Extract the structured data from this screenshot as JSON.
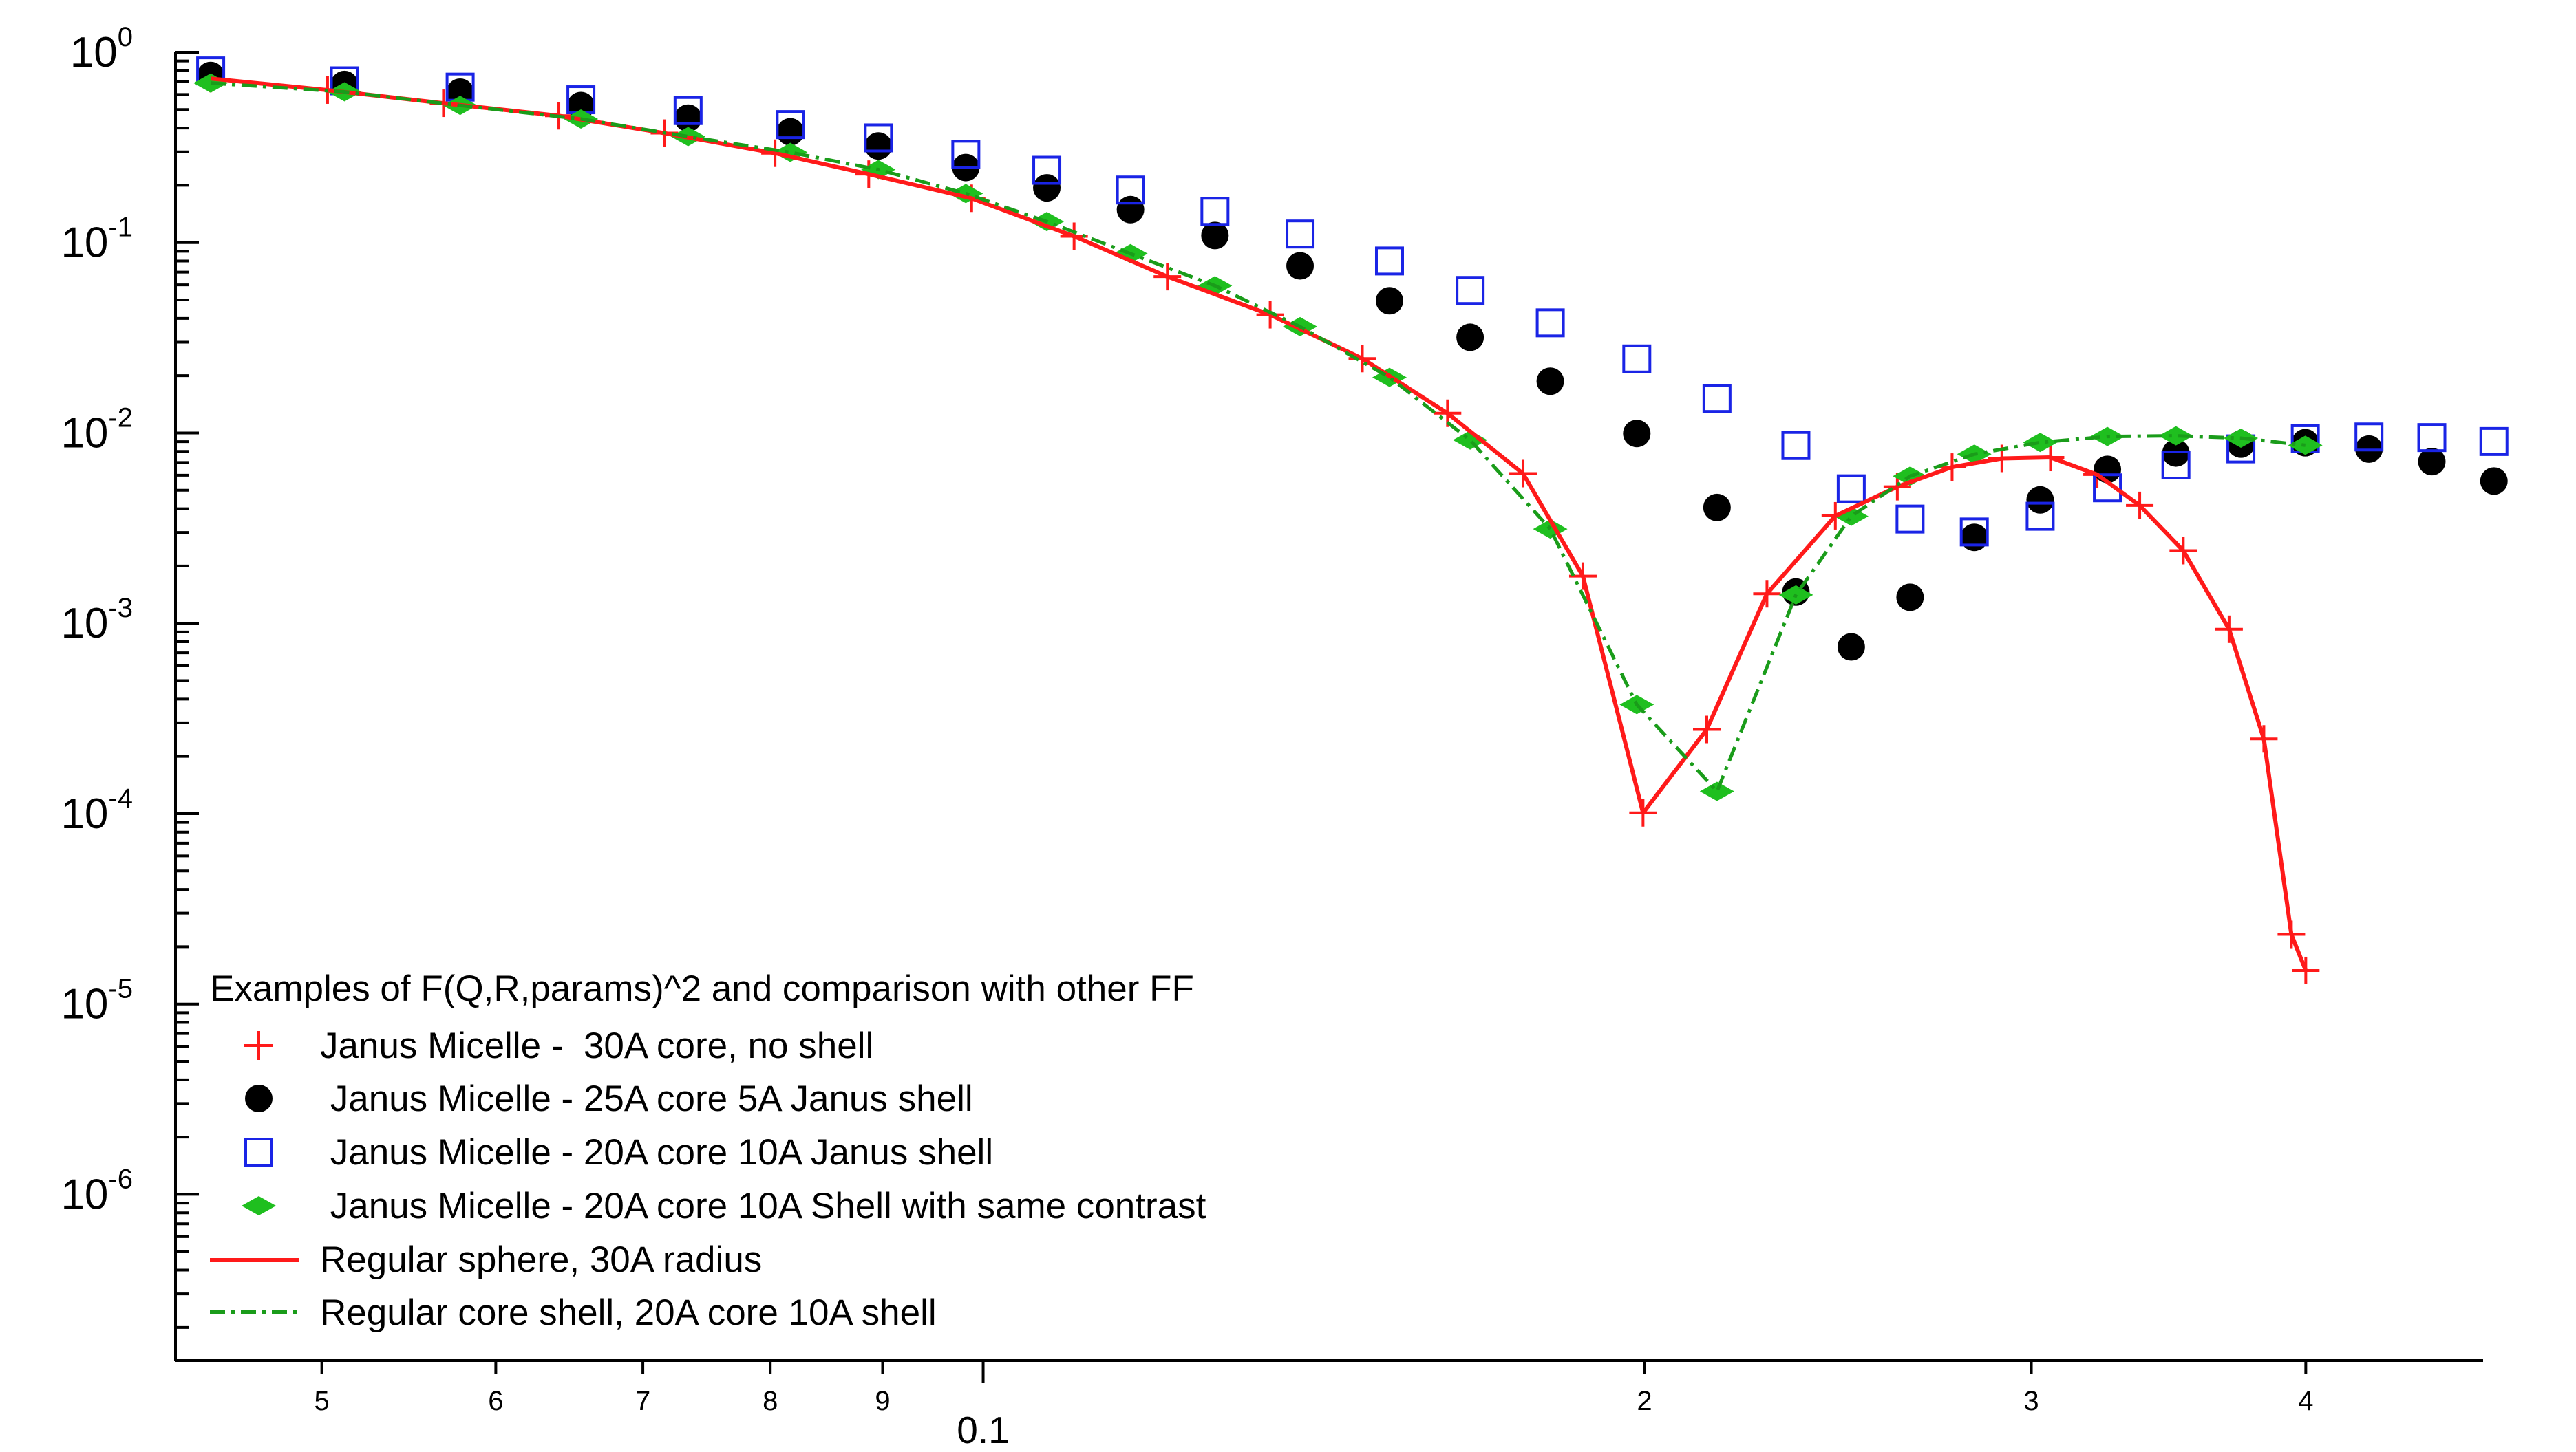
{
  "chart_data": {
    "type": "scatter",
    "x_scale": "log",
    "y_scale": "log",
    "xlim": [
      0.04289,
      0.4817
    ],
    "ylim": [
      1.34e-07,
      1.0
    ],
    "grid": false,
    "legend_position": "bottom-left",
    "x_ticks": [
      {
        "value": 0.05,
        "label": "5"
      },
      {
        "value": 0.06,
        "label": "6"
      },
      {
        "value": 0.07,
        "label": "7"
      },
      {
        "value": 0.08,
        "label": "8"
      },
      {
        "value": 0.09,
        "label": "9"
      },
      {
        "value": 0.2,
        "label": "2"
      },
      {
        "value": 0.3,
        "label": "3"
      },
      {
        "value": 0.4,
        "label": "4"
      }
    ],
    "x_major_label": {
      "value": 0.1,
      "label": "0.1"
    },
    "y_ticks": [
      {
        "value": 1,
        "base": "10",
        "exp": "0"
      },
      {
        "value": 0.1,
        "base": "10",
        "exp": "-1"
      },
      {
        "value": 0.01,
        "base": "10",
        "exp": "-2"
      },
      {
        "value": 0.001,
        "base": "10",
        "exp": "-3"
      },
      {
        "value": 0.0001,
        "base": "10",
        "exp": "-4"
      },
      {
        "value": 1e-05,
        "base": "10",
        "exp": "-5"
      },
      {
        "value": 1e-06,
        "base": "10",
        "exp": "-6"
      }
    ],
    "legend_title": "Examples of F(Q,R,params)^2 and comparison with other FF",
    "series": [
      {
        "name": "Janus Micelle -  30A core, no shell",
        "kind": "plus",
        "color": "#ff1a1a",
        "points": [
          [
            0.0445,
            0.728
          ],
          [
            0.0503,
            0.633
          ],
          [
            0.0568,
            0.54
          ],
          [
            0.0641,
            0.464
          ],
          [
            0.0716,
            0.376
          ],
          [
            0.0804,
            0.295
          ],
          [
            0.0887,
            0.229
          ],
          [
            0.0988,
            0.171
          ],
          [
            0.11,
            0.108
          ],
          [
            0.1213,
            0.0663
          ],
          [
            0.1351,
            0.0418
          ],
          [
            0.1488,
            0.0246
          ],
          [
            0.1627,
            0.0127
          ],
          [
            0.1761,
            0.00612
          ],
          [
            0.1875,
            0.00177
          ],
          [
            0.1997,
            0.000101
          ],
          [
            0.2135,
            0.000277
          ],
          [
            0.2274,
            0.00143
          ],
          [
            0.2443,
            0.00367
          ],
          [
            0.2607,
            0.00522
          ],
          [
            0.2761,
            0.00662
          ],
          [
            0.2909,
            0.00735
          ],
          [
            0.3061,
            0.00744
          ],
          [
            0.3214,
            0.00605
          ],
          [
            0.3361,
            0.00416
          ],
          [
            0.3518,
            0.00241
          ],
          [
            0.3691,
            0.000931
          ],
          [
            0.3828,
            0.000247
          ],
          [
            0.394,
            2.32e-05
          ],
          [
            0.4,
            1.5e-05
          ]
        ]
      },
      {
        "name": " Janus Micelle - 25A core 5A Janus shell",
        "kind": "circle",
        "color": "#000000",
        "points": [
          [
            0.0445,
            0.755
          ],
          [
            0.0512,
            0.677
          ],
          [
            0.0578,
            0.617
          ],
          [
            0.0656,
            0.525
          ],
          [
            0.0734,
            0.451
          ],
          [
            0.0817,
            0.382
          ],
          [
            0.0896,
            0.322
          ],
          [
            0.0982,
            0.248
          ],
          [
            0.1069,
            0.194
          ],
          [
            0.1167,
            0.149
          ],
          [
            0.1275,
            0.109
          ],
          [
            0.1394,
            0.0755
          ],
          [
            0.1531,
            0.0495
          ],
          [
            0.1666,
            0.0318
          ],
          [
            0.1812,
            0.0187
          ],
          [
            0.1984,
            0.00994
          ],
          [
            0.2158,
            0.00406
          ],
          [
            0.2344,
            0.00146
          ],
          [
            0.2484,
            0.000752
          ],
          [
            0.2642,
            0.00137
          ],
          [
            0.2826,
            0.00283
          ],
          [
            0.3028,
            0.00445
          ],
          [
            0.3249,
            0.00644
          ],
          [
            0.3491,
            0.00785
          ],
          [
            0.3737,
            0.00874
          ],
          [
            0.3998,
            0.00889
          ],
          [
            0.4274,
            0.00823
          ],
          [
            0.4565,
            0.00707
          ],
          [
            0.4872,
            0.00559
          ]
        ]
      },
      {
        "name": " Janus Micelle - 20A core 10A Janus shell",
        "kind": "square",
        "color": "#1a24e6",
        "points": [
          [
            0.0445,
            0.798
          ],
          [
            0.0512,
            0.708
          ],
          [
            0.0578,
            0.656
          ],
          [
            0.0656,
            0.563
          ],
          [
            0.0734,
            0.494
          ],
          [
            0.0817,
            0.417
          ],
          [
            0.0896,
            0.355
          ],
          [
            0.0982,
            0.291
          ],
          [
            0.1069,
            0.24
          ],
          [
            0.1167,
            0.189
          ],
          [
            0.1275,
            0.146
          ],
          [
            0.1394,
            0.111
          ],
          [
            0.1531,
            0.0801
          ],
          [
            0.1666,
            0.0561
          ],
          [
            0.1812,
            0.0379
          ],
          [
            0.1984,
            0.0245
          ],
          [
            0.2158,
            0.0152
          ],
          [
            0.2344,
            0.00859
          ],
          [
            0.2484,
            0.00509
          ],
          [
            0.2642,
            0.00353
          ],
          [
            0.2826,
            0.00302
          ],
          [
            0.3028,
            0.00365
          ],
          [
            0.3249,
            0.00515
          ],
          [
            0.3491,
            0.00679
          ],
          [
            0.3737,
            0.00825
          ],
          [
            0.3998,
            0.00932
          ],
          [
            0.4274,
            0.00953
          ],
          [
            0.4565,
            0.00946
          ],
          [
            0.4872,
            0.00902
          ]
        ]
      },
      {
        "name": " Janus Micelle - 20A core 10A Shell with same contrast",
        "kind": "diamond",
        "color": "#1fbf1f",
        "points": [
          [
            0.0445,
            0.689
          ],
          [
            0.0512,
            0.62
          ],
          [
            0.0578,
            0.526
          ],
          [
            0.0656,
            0.446
          ],
          [
            0.0734,
            0.361
          ],
          [
            0.0817,
            0.298
          ],
          [
            0.0896,
            0.242
          ],
          [
            0.0982,
            0.181
          ],
          [
            0.1069,
            0.129
          ],
          [
            0.1167,
            0.0875
          ],
          [
            0.1275,
            0.0594
          ],
          [
            0.1394,
            0.0362
          ],
          [
            0.1531,
            0.0196
          ],
          [
            0.1666,
            0.00918
          ],
          [
            0.1812,
            0.00313
          ],
          [
            0.1984,
            0.000374
          ],
          [
            0.2158,
            0.000131
          ],
          [
            0.2344,
            0.00141
          ],
          [
            0.2484,
            0.00365
          ],
          [
            0.2642,
            0.00593
          ],
          [
            0.2826,
            0.00774
          ],
          [
            0.3028,
            0.00892
          ],
          [
            0.3249,
            0.00958
          ],
          [
            0.3491,
            0.00966
          ],
          [
            0.3737,
            0.00939
          ],
          [
            0.3998,
            0.00862
          ]
        ]
      },
      {
        "name": "Regular sphere, 30A radius",
        "kind": "line",
        "color": "#ff1a1a",
        "points": [
          [
            0.0445,
            0.728
          ],
          [
            0.0503,
            0.633
          ],
          [
            0.0568,
            0.54
          ],
          [
            0.0641,
            0.464
          ],
          [
            0.0716,
            0.376
          ],
          [
            0.0804,
            0.295
          ],
          [
            0.0887,
            0.229
          ],
          [
            0.0988,
            0.171
          ],
          [
            0.11,
            0.108
          ],
          [
            0.1213,
            0.0663
          ],
          [
            0.1351,
            0.0418
          ],
          [
            0.1488,
            0.0246
          ],
          [
            0.1627,
            0.0127
          ],
          [
            0.1761,
            0.00612
          ],
          [
            0.1875,
            0.00177
          ],
          [
            0.1997,
            0.000101
          ],
          [
            0.2135,
            0.000277
          ],
          [
            0.2274,
            0.00143
          ],
          [
            0.2443,
            0.00367
          ],
          [
            0.2607,
            0.00522
          ],
          [
            0.2761,
            0.00662
          ],
          [
            0.2909,
            0.00735
          ],
          [
            0.3061,
            0.00744
          ],
          [
            0.3214,
            0.00605
          ],
          [
            0.3361,
            0.00416
          ],
          [
            0.3518,
            0.00241
          ],
          [
            0.3691,
            0.000931
          ],
          [
            0.3828,
            0.000247
          ],
          [
            0.394,
            2.32e-05
          ],
          [
            0.4,
            1.5e-05
          ]
        ]
      },
      {
        "name": "Regular core shell, 20A core 10A shell",
        "kind": "dashdot",
        "color": "#1a9c1a",
        "points": [
          [
            0.0445,
            0.689
          ],
          [
            0.0512,
            0.62
          ],
          [
            0.0578,
            0.526
          ],
          [
            0.0656,
            0.446
          ],
          [
            0.0734,
            0.361
          ],
          [
            0.0817,
            0.298
          ],
          [
            0.0896,
            0.242
          ],
          [
            0.0982,
            0.181
          ],
          [
            0.1069,
            0.129
          ],
          [
            0.1167,
            0.0875
          ],
          [
            0.1275,
            0.0594
          ],
          [
            0.1394,
            0.0362
          ],
          [
            0.1531,
            0.0196
          ],
          [
            0.1666,
            0.00918
          ],
          [
            0.1812,
            0.00313
          ],
          [
            0.1984,
            0.000374
          ],
          [
            0.2158,
            0.000131
          ],
          [
            0.2344,
            0.00141
          ],
          [
            0.2484,
            0.00365
          ],
          [
            0.2642,
            0.00593
          ],
          [
            0.2826,
            0.00774
          ],
          [
            0.3028,
            0.00892
          ],
          [
            0.3249,
            0.00958
          ],
          [
            0.3491,
            0.00966
          ],
          [
            0.3737,
            0.00939
          ],
          [
            0.3998,
            0.00862
          ]
        ]
      }
    ]
  }
}
